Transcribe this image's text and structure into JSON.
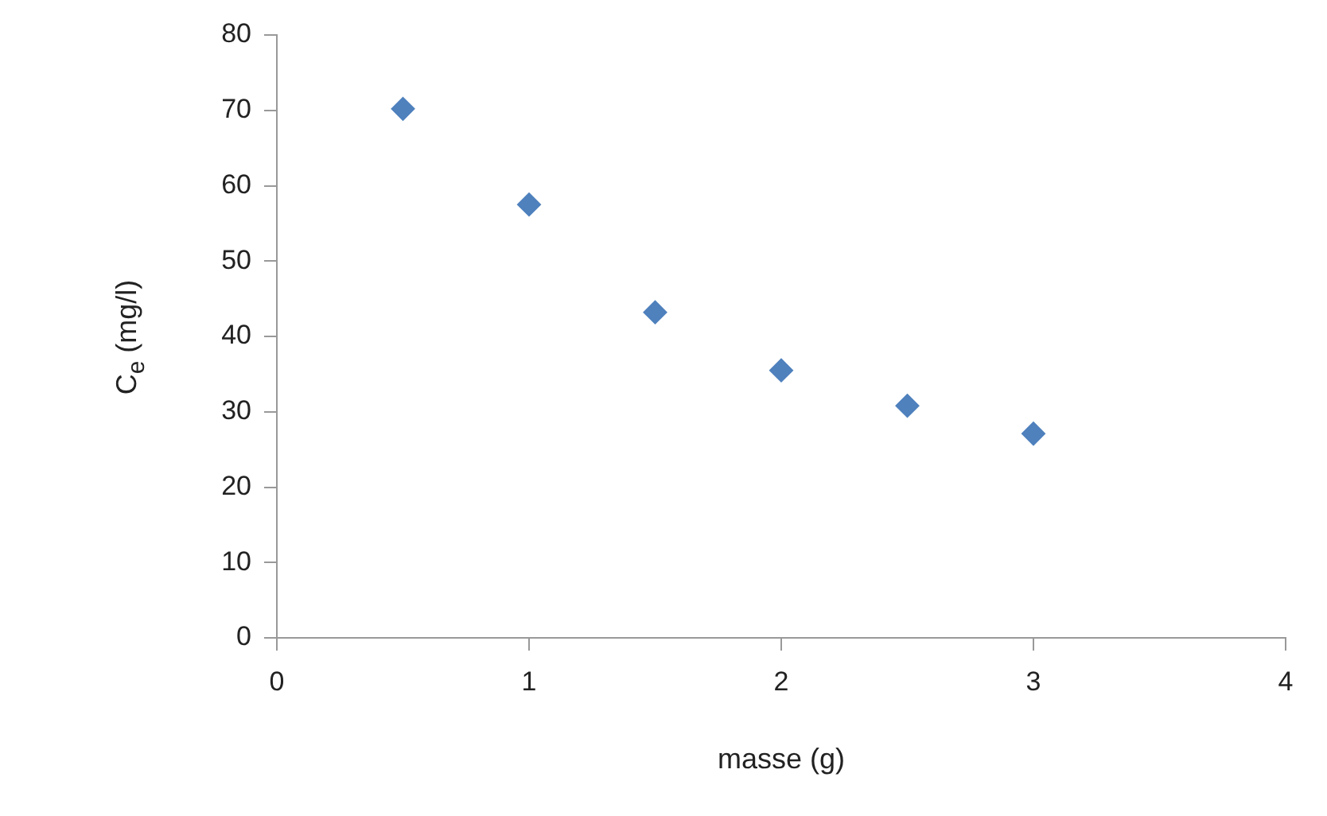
{
  "chart_data": {
    "type": "scatter",
    "xlabel": "masse (g)",
    "ylabel": "C$_{e}$ (mg/l)",
    "x": [
      0.5,
      1,
      1.5,
      2,
      2.5,
      3
    ],
    "series": [
      {
        "color": "#4f81bd",
        "values": [
          70.2,
          57.5,
          43.2,
          35.5,
          30.8,
          27.1
        ]
      }
    ],
    "xlim": [
      0,
      4
    ],
    "xticks": [
      0,
      1,
      2,
      3,
      4
    ],
    "ylim": [
      0,
      80
    ],
    "yticks": [
      0,
      10,
      20,
      30,
      40,
      50,
      60,
      70,
      80
    ],
    "grid": false,
    "legend": false,
    "marker": "diamond"
  }
}
